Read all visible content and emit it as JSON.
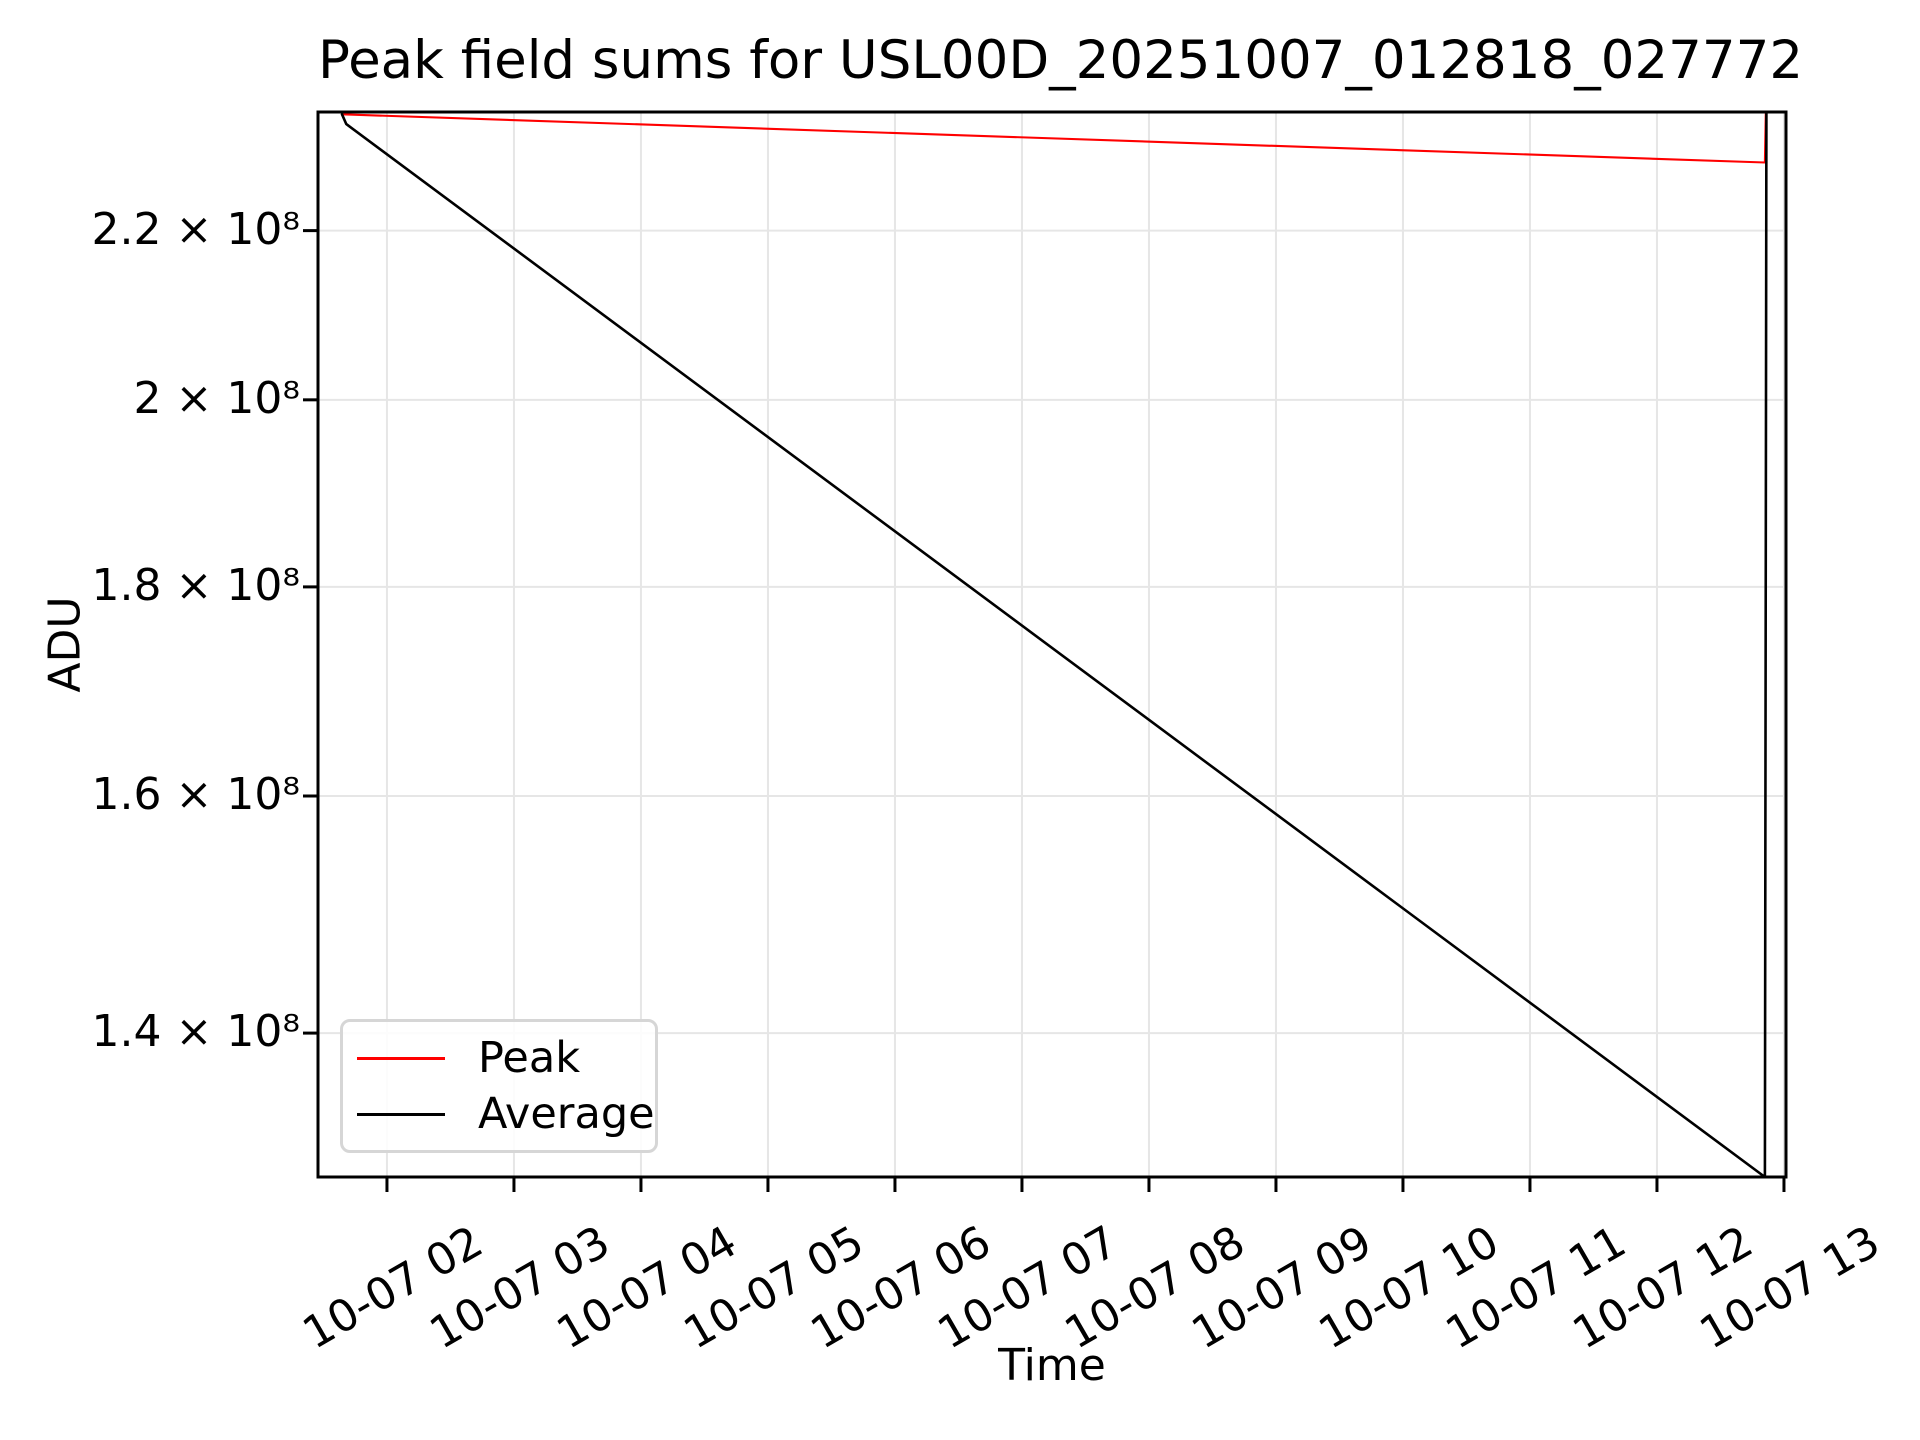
{
  "figure": {
    "title": "Peak field sums for USL00D_20251007_012818_027772"
  },
  "chart_data": {
    "type": "line",
    "title": "Peak field sums for USL00D_20251007_012818_027772",
    "xlabel": "Time",
    "ylabel": "ADU",
    "yscale": "log",
    "grid": true,
    "legend_position": "lower left",
    "ylim": [
      129100000,
      235200000
    ],
    "x_axis": {
      "unit": "hours",
      "min_hour": 1.457,
      "max_hour": 13.016,
      "date": "10-07"
    },
    "xticks": [
      {
        "hour": 2,
        "label": "10-07 02"
      },
      {
        "hour": 3,
        "label": "10-07 03"
      },
      {
        "hour": 4,
        "label": "10-07 04"
      },
      {
        "hour": 5,
        "label": "10-07 05"
      },
      {
        "hour": 6,
        "label": "10-07 06"
      },
      {
        "hour": 7,
        "label": "10-07 07"
      },
      {
        "hour": 8,
        "label": "10-07 08"
      },
      {
        "hour": 9,
        "label": "10-07 09"
      },
      {
        "hour": 10,
        "label": "10-07 10"
      },
      {
        "hour": 11,
        "label": "10-07 11"
      },
      {
        "hour": 12,
        "label": "10-07 12"
      },
      {
        "hour": 13,
        "label": "10-07 13"
      }
    ],
    "yticks": [
      {
        "value": 140000000,
        "label": "1.4 × 10⁸"
      },
      {
        "value": 160000000,
        "label": "1.6 × 10⁸"
      },
      {
        "value": 180000000,
        "label": "1.8 × 10⁸"
      },
      {
        "value": 200000000,
        "label": "2 × 10⁸"
      },
      {
        "value": 220000000,
        "label": "2.2 × 10⁸"
      }
    ],
    "series": [
      {
        "name": "Peak",
        "color": "#ff0000",
        "points": [
          [
            1.646,
            234900000
          ],
          [
            12.85,
            228600000
          ],
          [
            12.857,
            235100000
          ]
        ]
      },
      {
        "name": "Average",
        "color": "#000000",
        "points": [
          [
            1.646,
            234900000
          ],
          [
            1.68,
            233600000
          ],
          [
            12.85,
            129100000
          ],
          [
            12.862,
            235100000
          ]
        ]
      }
    ]
  }
}
